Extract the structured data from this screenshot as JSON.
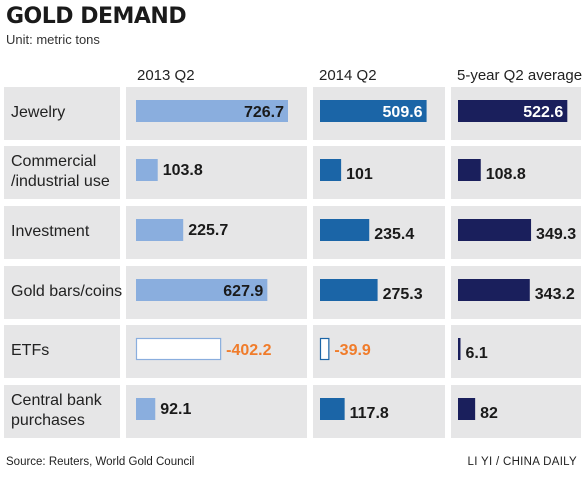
{
  "title": "GOLD DEMAND",
  "unit": "Unit: metric tons",
  "source": "Source: Reuters, World Gold Council",
  "credit": "LI YI / CHINA DAILY",
  "colors": {
    "row_bg": "#e6e6e7",
    "series_2013": "#8aaede",
    "series_2014": "#1b65a7",
    "series_avg": "#1a1f5c",
    "negative_text": "#f07c2b",
    "negative_outline_2013": "#8aaede",
    "negative_outline_2014": "#1b65a7"
  },
  "chart_data": {
    "type": "bar",
    "orientation": "horizontal",
    "categories": [
      [
        "Jewelry"
      ],
      [
        "Commercial",
        "/industrial use"
      ],
      [
        "Investment"
      ],
      [
        "Gold bars/coins"
      ],
      [
        "ETFs"
      ],
      [
        "Central bank",
        "purchases"
      ]
    ],
    "series": [
      {
        "name": "2013 Q2",
        "values": [
          726.7,
          103.8,
          225.7,
          627.9,
          -402.2,
          92.1
        ],
        "labels": [
          "726.7",
          "103.8",
          "225.7",
          "627.9",
          "-402.2",
          "92.1"
        ]
      },
      {
        "name": "2014 Q2",
        "values": [
          509.6,
          101,
          235.4,
          275.3,
          -39.9,
          117.8
        ],
        "labels": [
          "509.6",
          "101",
          "235.4",
          "275.3",
          "-39.9",
          "117.8"
        ]
      },
      {
        "name": "5-year Q2 average",
        "values": [
          522.6,
          108.8,
          349.3,
          343.2,
          6.1,
          82
        ],
        "labels": [
          "522.6",
          "108.8",
          "349.3",
          "343.2",
          "6.1",
          "82"
        ]
      }
    ],
    "negative_values_shown_as": "outlined bar with orange label"
  }
}
